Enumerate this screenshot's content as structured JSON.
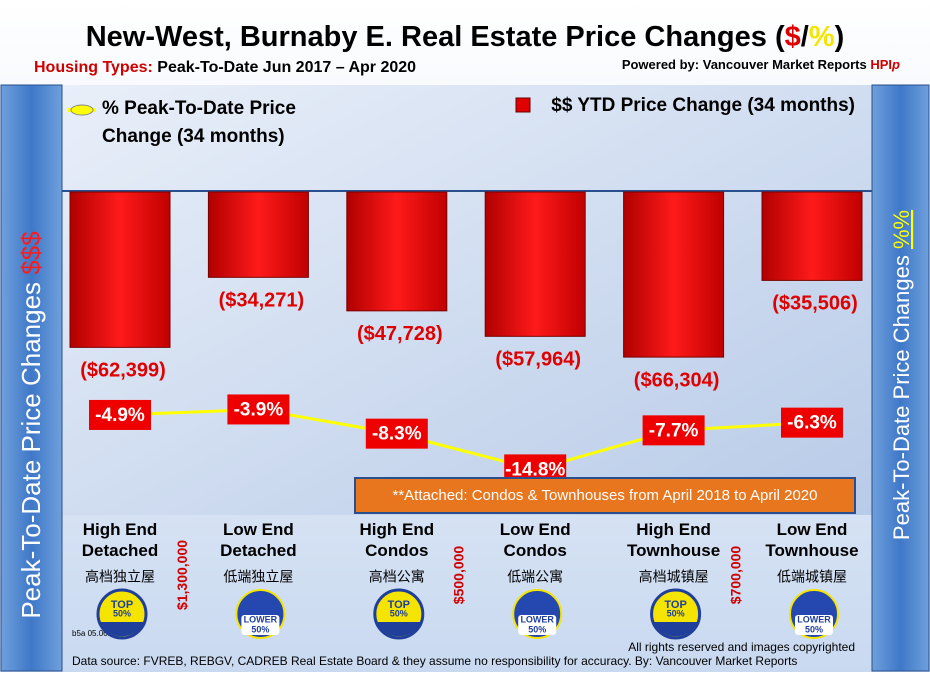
{
  "header": {
    "title": [
      "New-West, Burnaby E. Real Estate Price Changes (",
      "$",
      "/",
      "%",
      ")"
    ],
    "subtitle_label": "Housing Types:",
    "subtitle": "Peak-To-Date Jun 2017 – Apr 2020",
    "powered_by": "Powered by:",
    "powered_by_name": "Vancouver Market Reports",
    "hpi": "HPI",
    "hpi_suffix": "p"
  },
  "chart_data": {
    "type": "bar",
    "categories": [
      "High End Detached",
      "Low End Detached",
      "High End Condos",
      "Low End Condos",
      "High End Townhouse",
      "Low End Townhouse"
    ],
    "categories_zh": [
      "高档独立屋",
      "低端独立屋",
      "高档公寓",
      "低端公寓",
      "高档城镇屋",
      "低端城镇屋"
    ],
    "badges": [
      [
        "TOP",
        "50%"
      ],
      [
        "LOWER",
        "50%"
      ],
      [
        "TOP",
        "50%"
      ],
      [
        "LOWER",
        "50%"
      ],
      [
        "TOP",
        "50%"
      ],
      [
        "LOWER",
        "50%"
      ]
    ],
    "dividers": [
      "$1,300,000",
      "$500,000",
      "$700,000"
    ],
    "series": [
      {
        "name": "$$ YTD Price Change (34 months)",
        "type": "bar",
        "color": "#e00000",
        "values": [
          -62399,
          -34271,
          -47728,
          -57964,
          -66304,
          -35506
        ],
        "value_labels": [
          "($62,399)",
          "($34,271)",
          "($47,728)",
          "($57,964)",
          "($66,304)",
          "($35,506)"
        ]
      },
      {
        "name": "% Peak-To-Date Price Change (34 months)",
        "type": "line",
        "axis": "y2",
        "color": "#ffff00",
        "values": [
          -4.9,
          -3.9,
          -8.3,
          -14.8,
          -7.7,
          -6.3
        ],
        "value_labels": [
          "-4.9%",
          "-3.9%",
          "-8.3%",
          "-14.8%",
          "-7.7%",
          "-6.3%"
        ]
      }
    ],
    "ylim": [
      -70000,
      0
    ],
    "y2lim": [
      -20,
      0
    ],
    "y_axis_label": [
      "Peak-To-Date Price Changes ",
      "$$$"
    ],
    "y2_axis_label": [
      "Peak-To-Date  Price  Changes  ",
      "%%"
    ],
    "note": "**Attached: Condos & Townhouses from April 2018 to April 2020"
  },
  "footer": {
    "code": "b5a 05.06.2020",
    "rights": "All rights reserved and  images copyrighted",
    "source": "Data source: FVREB, REBGV, CADREB Real Estate Board & they assume no responsibility for accuracy. By: Vancouver Market Reports"
  }
}
